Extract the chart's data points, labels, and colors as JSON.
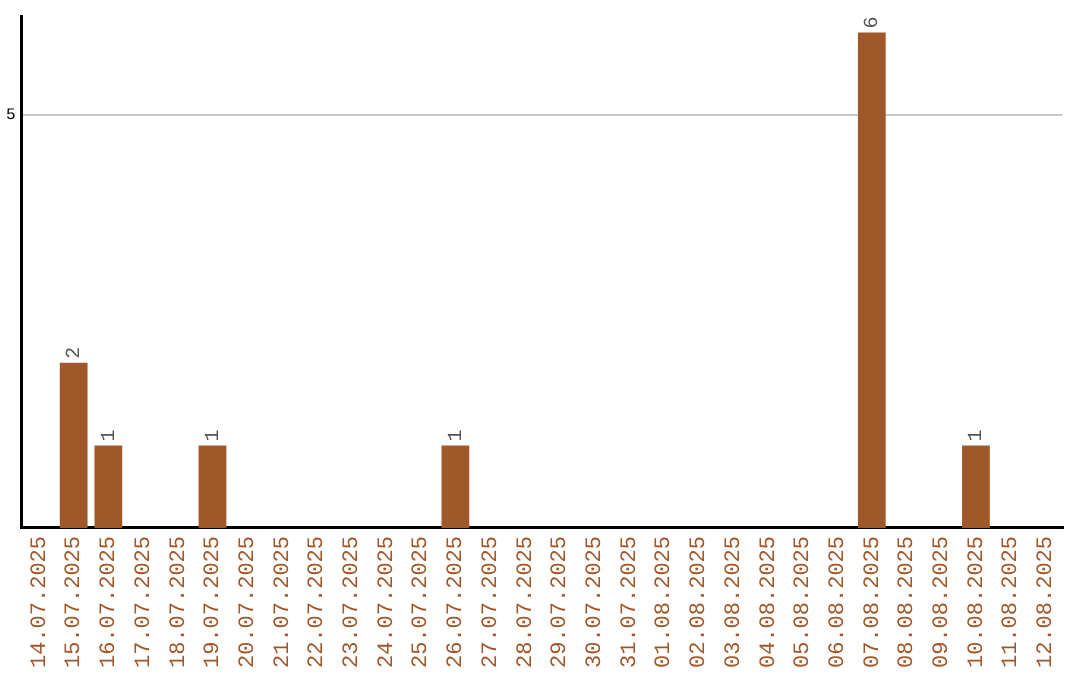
{
  "chart_data": {
    "type": "bar",
    "categories": [
      "14.07.2025",
      "15.07.2025",
      "16.07.2025",
      "17.07.2025",
      "18.07.2025",
      "19.07.2025",
      "20.07.2025",
      "21.07.2025",
      "22.07.2025",
      "23.07.2025",
      "24.07.2025",
      "25.07.2025",
      "26.07.2025",
      "27.07.2025",
      "28.07.2025",
      "29.07.2025",
      "30.07.2025",
      "31.07.2025",
      "01.08.2025",
      "02.08.2025",
      "03.08.2025",
      "04.08.2025",
      "05.08.2025",
      "06.08.2025",
      "07.08.2025",
      "08.08.2025",
      "09.08.2025",
      "10.08.2025",
      "11.08.2025",
      "12.08.2025"
    ],
    "values": [
      0,
      2,
      1,
      0,
      0,
      1,
      0,
      0,
      0,
      0,
      0,
      0,
      1,
      0,
      0,
      0,
      0,
      0,
      0,
      0,
      0,
      0,
      0,
      0,
      6,
      0,
      0,
      1,
      0,
      0
    ],
    "value_labels": [
      null,
      "2",
      "1",
      null,
      null,
      "1",
      null,
      null,
      null,
      null,
      null,
      null,
      "1",
      null,
      null,
      null,
      null,
      null,
      null,
      null,
      null,
      null,
      null,
      null,
      "6",
      null,
      null,
      "1",
      null,
      null
    ],
    "color": "#a0582a",
    "ylim": [
      0,
      6.2
    ],
    "yticks": [
      5
    ],
    "grid": "y",
    "legend": false
  }
}
